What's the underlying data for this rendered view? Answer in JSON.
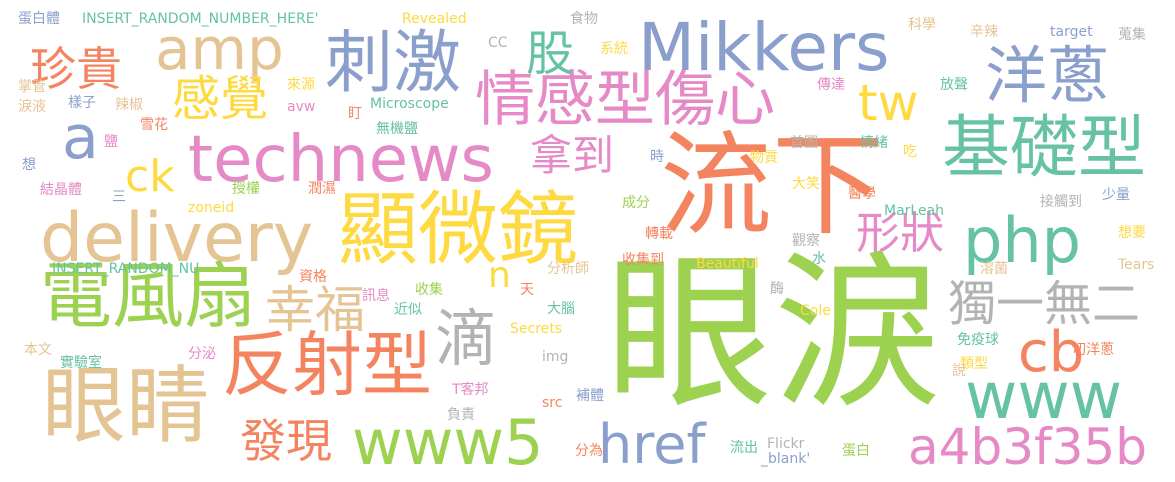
{
  "palette": {
    "green": "#9dd150",
    "orange": "#f4845f",
    "pink": "#e58ac6",
    "blue": "#8a9fcb",
    "teal": "#66c2a5",
    "yellow": "#fed93f",
    "tan": "#e5c494",
    "gray": "#b3b3b3"
  },
  "words": [
    {
      "text": "眼淚",
      "color": "green"
    },
    {
      "text": "流下",
      "color": "orange"
    },
    {
      "text": "顯微鏡",
      "color": "yellow"
    },
    {
      "text": "technews",
      "color": "pink"
    },
    {
      "text": "Mikkers",
      "color": "blue"
    },
    {
      "text": "delivery",
      "color": "tan"
    },
    {
      "text": "電風扇",
      "color": "green"
    },
    {
      "text": "眼睛",
      "color": "tan"
    },
    {
      "text": "反射型",
      "color": "orange"
    },
    {
      "text": "www5",
      "color": "green"
    },
    {
      "text": "www",
      "color": "teal"
    },
    {
      "text": "刺激",
      "color": "blue"
    },
    {
      "text": "amp",
      "color": "tan"
    },
    {
      "text": "情感型傷心",
      "color": "pink"
    },
    {
      "text": "基礎型",
      "color": "teal"
    },
    {
      "text": "洋蔥",
      "color": "blue"
    },
    {
      "text": "php",
      "color": "teal"
    },
    {
      "text": "cb",
      "color": "orange"
    },
    {
      "text": "a4b3f35b",
      "color": "pink"
    },
    {
      "text": "tw",
      "color": "yellow"
    },
    {
      "text": "a",
      "color": "blue"
    },
    {
      "text": "滴",
      "color": "gray"
    },
    {
      "text": "幸福",
      "color": "tan"
    },
    {
      "text": "獨一無二",
      "color": "gray"
    },
    {
      "text": "href",
      "color": "blue"
    },
    {
      "text": "形狀",
      "color": "pink"
    },
    {
      "text": "拿到",
      "color": "pink"
    },
    {
      "text": "珍貴",
      "color": "orange"
    },
    {
      "text": "感覺",
      "color": "yellow"
    },
    {
      "text": "發現",
      "color": "orange"
    },
    {
      "text": "ck",
      "color": "yellow"
    },
    {
      "text": "股",
      "color": "teal"
    },
    {
      "text": "n",
      "color": "yellow"
    },
    {
      "text": "蛋白體",
      "color": "blue"
    },
    {
      "text": "INSERT_RANDOM_NUMBER_HERE'",
      "color": "teal"
    },
    {
      "text": "Revealed",
      "color": "yellow"
    },
    {
      "text": "食物",
      "color": "gray"
    },
    {
      "text": "科學",
      "color": "tan"
    },
    {
      "text": "辛辣",
      "color": "tan"
    },
    {
      "text": "target",
      "color": "blue"
    },
    {
      "text": "蒐集",
      "color": "gray"
    },
    {
      "text": "CC",
      "color": "gray"
    },
    {
      "text": "系統",
      "color": "yellow"
    },
    {
      "text": "來源",
      "color": "yellow"
    },
    {
      "text": "傳達",
      "color": "pink"
    },
    {
      "text": "放聲",
      "color": "teal"
    },
    {
      "text": "掌管",
      "color": "tan"
    },
    {
      "text": "樣子",
      "color": "blue"
    },
    {
      "text": "辣椒",
      "color": "tan"
    },
    {
      "text": "avw",
      "color": "pink"
    },
    {
      "text": "Microscope",
      "color": "teal"
    },
    {
      "text": "盯",
      "color": "orange"
    },
    {
      "text": "淚液",
      "color": "tan"
    },
    {
      "text": "雪花",
      "color": "orange"
    },
    {
      "text": "鹽",
      "color": "pink"
    },
    {
      "text": "無機鹽",
      "color": "teal"
    },
    {
      "text": "首圖",
      "color": "gray"
    },
    {
      "text": "情緒",
      "color": "teal"
    },
    {
      "text": "吃",
      "color": "yellow"
    },
    {
      "text": "想",
      "color": "blue"
    },
    {
      "text": "時",
      "color": "blue"
    },
    {
      "text": "物質",
      "color": "yellow"
    },
    {
      "text": "結晶體",
      "color": "pink"
    },
    {
      "text": "授權",
      "color": "green"
    },
    {
      "text": "潤濕",
      "color": "orange"
    },
    {
      "text": "大笑",
      "color": "yellow"
    },
    {
      "text": "三",
      "color": "blue"
    },
    {
      "text": "成分",
      "color": "green"
    },
    {
      "text": "醫學",
      "color": "orange"
    },
    {
      "text": "接觸到",
      "color": "gray"
    },
    {
      "text": "少量",
      "color": "blue"
    },
    {
      "text": "zoneid",
      "color": "yellow"
    },
    {
      "text": "MarLeah",
      "color": "teal"
    },
    {
      "text": "轉載",
      "color": "orange"
    },
    {
      "text": "觀察",
      "color": "gray"
    },
    {
      "text": "想要",
      "color": "yellow"
    },
    {
      "text": "INSERT_RANDOM_NU",
      "color": "teal"
    },
    {
      "text": "收集到",
      "color": "orange"
    },
    {
      "text": "Beautiful",
      "color": "yellow"
    },
    {
      "text": "水",
      "color": "teal"
    },
    {
      "text": "溶菌",
      "color": "tan"
    },
    {
      "text": "資格",
      "color": "orange"
    },
    {
      "text": "分析師",
      "color": "tan"
    },
    {
      "text": "Tears",
      "color": "tan"
    },
    {
      "text": "訊息",
      "color": "pink"
    },
    {
      "text": "收集",
      "color": "green"
    },
    {
      "text": "天",
      "color": "orange"
    },
    {
      "text": "大腦",
      "color": "teal"
    },
    {
      "text": "近似",
      "color": "teal"
    },
    {
      "text": "酶",
      "color": "gray"
    },
    {
      "text": "Cole",
      "color": "yellow"
    },
    {
      "text": "Secrets",
      "color": "yellow"
    },
    {
      "text": "免疫球",
      "color": "teal"
    },
    {
      "text": "本文",
      "color": "tan"
    },
    {
      "text": "分泌",
      "color": "pink"
    },
    {
      "text": "img",
      "color": "gray"
    },
    {
      "text": "類型",
      "color": "yellow"
    },
    {
      "text": "切洋蔥",
      "color": "orange"
    },
    {
      "text": "實驗室",
      "color": "teal"
    },
    {
      "text": "說",
      "color": "tan"
    },
    {
      "text": "T客邦",
      "color": "pink"
    },
    {
      "text": "src",
      "color": "orange"
    },
    {
      "text": "補體",
      "color": "blue"
    },
    {
      "text": "負責",
      "color": "gray"
    },
    {
      "text": "分為",
      "color": "orange"
    },
    {
      "text": "Flickr",
      "color": "gray"
    },
    {
      "text": "流出",
      "color": "teal"
    },
    {
      "text": "_blank'",
      "color": "blue"
    },
    {
      "text": "蛋白",
      "color": "green"
    }
  ]
}
